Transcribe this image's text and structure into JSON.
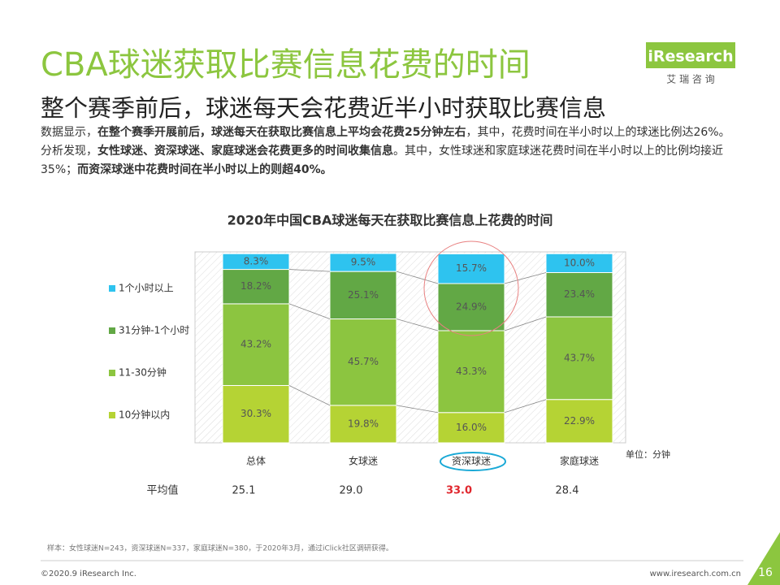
{
  "header": {
    "title": "CBA球迷获取比赛信息花费的时间",
    "subtitle": "整个赛季前后，球迷每天会花费近半小时获取比赛信息",
    "logo": "iResearch",
    "logo_sub": "艾 瑞 咨 询"
  },
  "paragraph": [
    {
      "text": "数据显示，",
      "bold": false
    },
    {
      "text": "在整个赛季开展前后，球迷每天在获取比赛信息上平均会花费25分钟左右",
      "bold": true
    },
    {
      "text": "，其中，花费时间在半小时以上的球迷比例达26%。分析发现，",
      "bold": false
    },
    {
      "text": "女性球迷、资深球迷、家庭球迷会花费更多的时间收集信息",
      "bold": true
    },
    {
      "text": "。其中，女性球迷和家庭球迷花费时间在半小时以上的比例均接近35%；",
      "bold": false
    },
    {
      "text": "而资深球迷中花费时间在半小时以上的则超40%。",
      "bold": true
    }
  ],
  "chart_data": {
    "type": "stacked_bar",
    "title": "2020年中国CBA球迷每天在获取比赛信息上花费的时间",
    "categories": [
      "总体",
      "女球迷",
      "资深球迷",
      "家庭球迷"
    ],
    "series": [
      {
        "name": "10分钟以内",
        "color": "#b5d334",
        "values": [
          30.3,
          19.8,
          16.0,
          22.9
        ],
        "value_labels": [
          "30.3%",
          "19.8%",
          "16.0%",
          "22.9%"
        ]
      },
      {
        "name": "11-30分钟",
        "color": "#8cc540",
        "values": [
          43.2,
          45.7,
          43.3,
          43.7
        ],
        "value_labels": [
          "43.2%",
          "45.7%",
          "43.3%",
          "43.7%"
        ]
      },
      {
        "name": "31分钟-1个小时",
        "color": "#62a845",
        "values": [
          18.2,
          25.1,
          24.9,
          23.4
        ],
        "value_labels": [
          "18.2%",
          "25.1%",
          "24.9%",
          "23.4%"
        ]
      },
      {
        "name": "1个小时以上",
        "color": "#2ec3ef",
        "values": [
          8.3,
          9.5,
          15.7,
          10.0
        ],
        "value_labels": [
          "8.3%",
          "9.5%",
          "15.7%",
          "10.0%"
        ]
      }
    ],
    "unit_label": "单位：分钟",
    "averages": {
      "label": "平均值",
      "values": [
        25.1,
        29.0,
        33.0,
        28.4
      ],
      "value_labels": [
        "25.1",
        "29.0",
        "33.0",
        "28.4"
      ],
      "highlight_index": 2,
      "highlight_color": "#e0262d"
    }
  },
  "footer": {
    "note": "样本：女性球迷N=243，资深球迷N=337，家庭球迷N=380，于2020年3月，通过iClick社区调研获得。",
    "copyright": "©2020.9 iResearch Inc.",
    "website": "www.iresearch.com.cn",
    "page": "16"
  }
}
